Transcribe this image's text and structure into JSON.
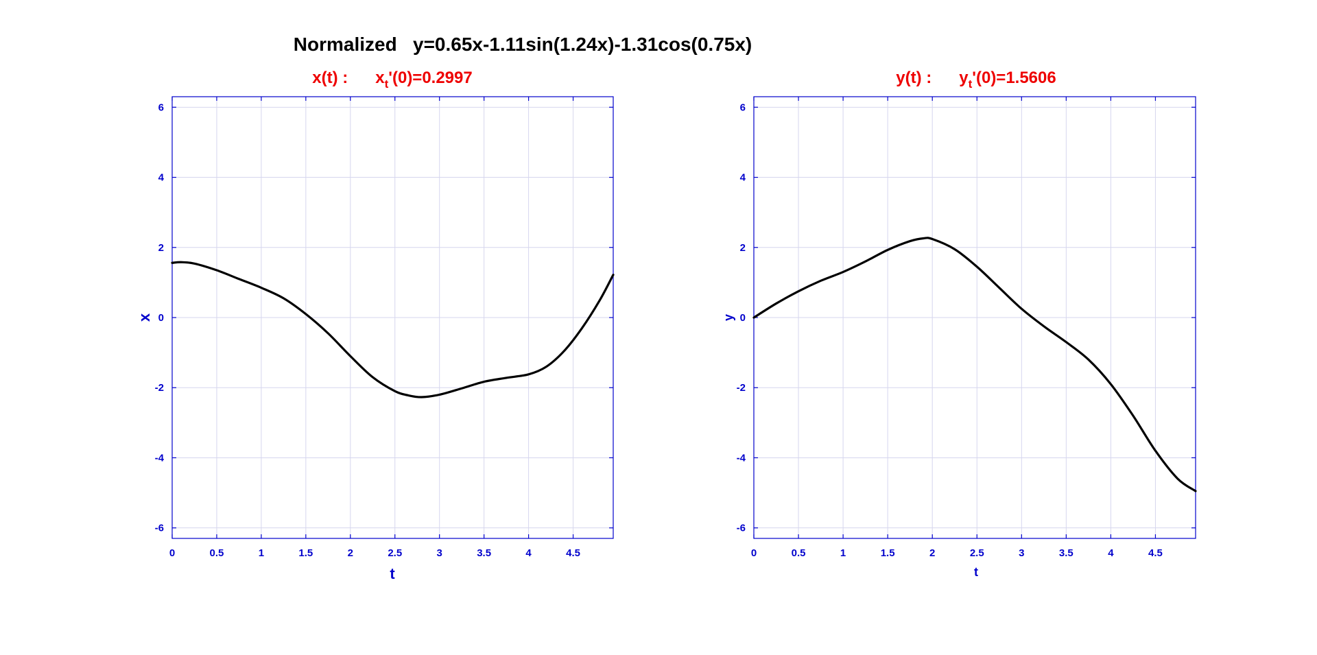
{
  "figure": {
    "title": "Normalized   y=0.65x-1.11sin(1.24x)-1.31cos(0.75x)"
  },
  "colors": {
    "axes": "#0000cc",
    "title_accent": "#ee0000",
    "grid": "#d6d6ee",
    "line": "#000000"
  },
  "chart_data": [
    {
      "type": "line",
      "title_main": "x(t) :",
      "title_deriv_var": "x",
      "title_deriv_sub": "t",
      "title_deriv_rest": "'(0)=0.2997",
      "xlabel": "t",
      "ylabel": "x",
      "xlim": [
        0,
        4.95
      ],
      "ylim": [
        -6.3,
        6.3
      ],
      "xticks": [
        "0",
        "0.5",
        "1",
        "1.5",
        "2",
        "2.5",
        "3",
        "3.5",
        "4",
        "4.5"
      ],
      "xtick_values": [
        0,
        0.5,
        1,
        1.5,
        2,
        2.5,
        3,
        3.5,
        4,
        4.5
      ],
      "yticks": [
        "6",
        "4",
        "2",
        "0",
        "-2",
        "-4",
        "-6"
      ],
      "ytick_values": [
        6,
        4,
        2,
        0,
        -2,
        -4,
        -6
      ],
      "grid": true,
      "series": [
        {
          "x": [
            0,
            0.1,
            0.25,
            0.5,
            0.75,
            1.0,
            1.25,
            1.5,
            1.75,
            2.0,
            2.25,
            2.5,
            2.65,
            2.8,
            3.0,
            3.25,
            3.5,
            3.75,
            4.0,
            4.2,
            4.4,
            4.6,
            4.8,
            4.95
          ],
          "y": [
            1.56,
            1.58,
            1.54,
            1.35,
            1.1,
            0.85,
            0.55,
            0.1,
            -0.45,
            -1.1,
            -1.7,
            -2.1,
            -2.22,
            -2.27,
            -2.2,
            -2.02,
            -1.83,
            -1.72,
            -1.62,
            -1.4,
            -0.95,
            -0.3,
            0.5,
            1.22
          ]
        }
      ]
    },
    {
      "type": "line",
      "title_main": "y(t) :",
      "title_deriv_var": "y",
      "title_deriv_sub": "t",
      "title_deriv_rest": "'(0)=1.5606",
      "xlabel": "t",
      "ylabel": "y",
      "xlim": [
        0,
        4.95
      ],
      "ylim": [
        -6.3,
        6.3
      ],
      "xticks": [
        "0",
        "0.5",
        "1",
        "1.5",
        "2",
        "2.5",
        "3",
        "3.5",
        "4",
        "4.5"
      ],
      "xtick_values": [
        0,
        0.5,
        1,
        1.5,
        2,
        2.5,
        3,
        3.5,
        4,
        4.5
      ],
      "yticks": [
        "6",
        "4",
        "2",
        "0",
        "-2",
        "-4",
        "-6"
      ],
      "ytick_values": [
        6,
        4,
        2,
        0,
        -2,
        -4,
        -6
      ],
      "grid": true,
      "series": [
        {
          "x": [
            0,
            0.25,
            0.5,
            0.75,
            1.0,
            1.25,
            1.5,
            1.75,
            1.9,
            2.0,
            2.25,
            2.5,
            2.75,
            3.0,
            3.25,
            3.5,
            3.75,
            4.0,
            4.25,
            4.5,
            4.75,
            4.95
          ],
          "y": [
            0.0,
            0.4,
            0.75,
            1.05,
            1.3,
            1.6,
            1.93,
            2.18,
            2.26,
            2.24,
            1.95,
            1.45,
            0.85,
            0.25,
            -0.25,
            -0.7,
            -1.2,
            -1.9,
            -2.8,
            -3.8,
            -4.6,
            -4.95
          ]
        }
      ]
    }
  ]
}
